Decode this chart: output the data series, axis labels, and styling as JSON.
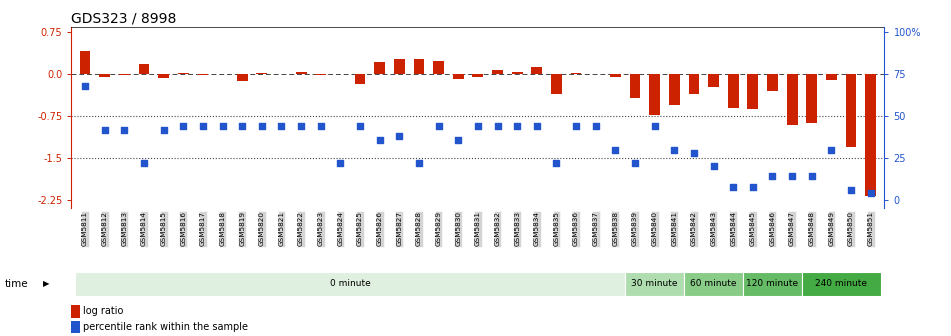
{
  "title": "GDS323 / 8998",
  "samples": [
    "GSM5811",
    "GSM5812",
    "GSM5813",
    "GSM5814",
    "GSM5815",
    "GSM5816",
    "GSM5817",
    "GSM5818",
    "GSM5819",
    "GSM5820",
    "GSM5821",
    "GSM5822",
    "GSM5823",
    "GSM5824",
    "GSM5825",
    "GSM5826",
    "GSM5827",
    "GSM5828",
    "GSM5829",
    "GSM5830",
    "GSM5831",
    "GSM5832",
    "GSM5833",
    "GSM5834",
    "GSM5835",
    "GSM5836",
    "GSM5837",
    "GSM5838",
    "GSM5839",
    "GSM5840",
    "GSM5841",
    "GSM5842",
    "GSM5843",
    "GSM5844",
    "GSM5845",
    "GSM5846",
    "GSM5847",
    "GSM5848",
    "GSM5849",
    "GSM5850",
    "GSM5851"
  ],
  "log_ratio": [
    0.42,
    -0.04,
    -0.01,
    0.18,
    -0.06,
    0.02,
    -0.01,
    0.0,
    -0.12,
    0.03,
    0.0,
    0.04,
    -0.02,
    0.01,
    -0.18,
    0.22,
    0.28,
    0.27,
    0.24,
    -0.08,
    -0.04,
    0.08,
    0.05,
    0.14,
    -0.35,
    0.02,
    0.01,
    -0.04,
    -0.42,
    -0.72,
    -0.55,
    -0.35,
    -0.22,
    -0.6,
    -0.62,
    -0.3,
    -0.9,
    -0.88,
    -0.1,
    -1.3,
    -2.18
  ],
  "percentile": [
    68,
    42,
    42,
    22,
    42,
    44,
    44,
    44,
    44,
    44,
    44,
    44,
    44,
    22,
    44,
    36,
    38,
    22,
    44,
    36,
    44,
    44,
    44,
    44,
    22,
    44,
    44,
    30,
    22,
    44,
    30,
    28,
    20,
    8,
    8,
    14,
    14,
    14,
    30,
    6,
    4
  ],
  "log_ratio_color": "#cc2200",
  "percentile_color": "#2255cc",
  "ylim_min": -2.4,
  "ylim_max": 0.85,
  "yticks_left": [
    0.75,
    0.0,
    -0.75,
    -1.5,
    -2.25
  ],
  "yticks_right_vals": [
    100,
    75,
    50,
    25,
    0
  ],
  "bg_color": "#ffffff",
  "title_fontsize": 10,
  "tick_fontsize": 7,
  "time_groups": [
    {
      "label": "0 minute",
      "start": 0,
      "end": 28,
      "color": "#e0f0e0"
    },
    {
      "label": "30 minute",
      "start": 28,
      "end": 31,
      "color": "#b0ddb0"
    },
    {
      "label": "60 minute",
      "start": 31,
      "end": 34,
      "color": "#88cc88"
    },
    {
      "label": "120 minute",
      "start": 34,
      "end": 37,
      "color": "#66bb66"
    },
    {
      "label": "240 minute",
      "start": 37,
      "end": 41,
      "color": "#44aa44"
    }
  ]
}
